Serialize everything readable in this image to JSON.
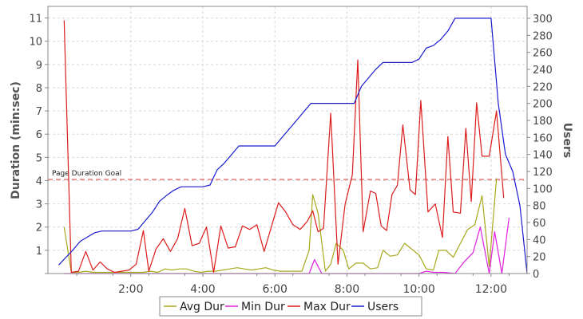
{
  "chart_data": {
    "type": "line",
    "title": "",
    "ylabel_left": "Duration (min:sec)",
    "ylabel_right": "Users",
    "xlabel": "",
    "x_ticks": [
      {
        "label": "2:00",
        "x": 2
      },
      {
        "label": "4:00",
        "x": 4
      },
      {
        "label": "6:00",
        "x": 6
      },
      {
        "label": "8:00",
        "x": 8
      },
      {
        "label": "10:00",
        "x": 10
      },
      {
        "label": "12:00",
        "x": 12
      }
    ],
    "xlim": [
      -0.3,
      13.0
    ],
    "ylim_left": [
      0,
      11.5
    ],
    "y_ticks_left": [
      1,
      2,
      3,
      4,
      5,
      6,
      7,
      8,
      9,
      10,
      11
    ],
    "ylim_right": [
      0,
      314
    ],
    "y_ticks_right": [
      0,
      20,
      40,
      60,
      80,
      100,
      120,
      140,
      160,
      180,
      200,
      220,
      240,
      260,
      280,
      300
    ],
    "goal_line": {
      "label": "Page Duration Goal",
      "y": 4.05,
      "color": "#d13a3a"
    },
    "legend_position": "bottom",
    "grid": true,
    "series": [
      {
        "name": "Avg Dur",
        "color": "#a8a81c",
        "axis": "left",
        "x": [
          0.15,
          0.35,
          0.55,
          0.75,
          0.95,
          1.15,
          1.35,
          1.55,
          1.75,
          1.95,
          2.15,
          2.35,
          2.55,
          2.75,
          2.95,
          3.15,
          3.35,
          3.55,
          3.75,
          3.95,
          4.15,
          4.35,
          4.55,
          4.75,
          4.95,
          5.15,
          5.35,
          5.55,
          5.75,
          5.95,
          6.15,
          6.35,
          6.55,
          6.75,
          6.95,
          7.05,
          7.2,
          7.4,
          7.55,
          7.7,
          7.9,
          8.05,
          8.25,
          8.45,
          8.65,
          8.85,
          9.0,
          9.2,
          9.4,
          9.6,
          9.8,
          10.0,
          10.2,
          10.4,
          10.55,
          10.75,
          10.95,
          11.15,
          11.35,
          11.55,
          11.75,
          11.95,
          12.15
        ],
        "values": [
          2.0,
          0.05,
          0.05,
          0.1,
          0.05,
          0.05,
          0.05,
          0.05,
          0.05,
          0.05,
          0.05,
          0.05,
          0.1,
          0.05,
          0.2,
          0.15,
          0.2,
          0.2,
          0.1,
          0.05,
          0.1,
          0.1,
          0.15,
          0.2,
          0.25,
          0.2,
          0.15,
          0.2,
          0.25,
          0.15,
          0.1,
          0.1,
          0.1,
          0.1,
          1.0,
          3.4,
          2.6,
          0.1,
          0.4,
          1.3,
          1.0,
          0.2,
          0.45,
          0.45,
          0.2,
          0.25,
          1.0,
          0.75,
          0.8,
          1.3,
          1.05,
          0.8,
          0.2,
          0.15,
          1.0,
          1.0,
          0.7,
          1.3,
          1.9,
          2.1,
          3.35,
          0.3,
          4.1
        ]
      },
      {
        "name": "Min Dur",
        "color": "#e020e0",
        "axis": "left",
        "x": [
          0.15,
          0.35,
          1.0,
          2.0,
          3.0,
          4.0,
          5.0,
          6.0,
          6.95,
          7.1,
          7.3,
          7.6,
          8.0,
          9.0,
          10.0,
          10.2,
          10.4,
          10.7,
          11.0,
          11.25,
          11.5,
          11.7,
          11.95,
          12.1,
          12.3,
          12.5
        ],
        "values": [
          0.0,
          0.0,
          0.0,
          0.0,
          0.0,
          0.0,
          0.0,
          0.0,
          0.0,
          0.6,
          0.0,
          0.0,
          0.0,
          0.0,
          0.0,
          0.1,
          0.05,
          0.05,
          0.0,
          0.5,
          0.9,
          2.0,
          0.0,
          1.8,
          0.0,
          2.4
        ]
      },
      {
        "name": "Max Dur",
        "color": "#dd1c1c",
        "axis": "left",
        "x": [
          0.15,
          0.35,
          0.55,
          0.75,
          0.95,
          1.15,
          1.35,
          1.55,
          1.75,
          1.95,
          2.15,
          2.35,
          2.5,
          2.7,
          2.9,
          3.1,
          3.3,
          3.5,
          3.7,
          3.9,
          4.1,
          4.3,
          4.5,
          4.7,
          4.9,
          5.1,
          5.3,
          5.5,
          5.7,
          5.9,
          6.1,
          6.3,
          6.5,
          6.7,
          6.9,
          7.05,
          7.2,
          7.35,
          7.55,
          7.75,
          7.95,
          8.15,
          8.3,
          8.45,
          8.65,
          8.8,
          8.95,
          9.1,
          9.25,
          9.4,
          9.55,
          9.75,
          9.9,
          10.05,
          10.25,
          10.45,
          10.65,
          10.8,
          10.95,
          11.15,
          11.3,
          11.45,
          11.6,
          11.75,
          11.95,
          12.15,
          12.35
        ],
        "values": [
          10.9,
          0.05,
          0.1,
          0.95,
          0.15,
          0.5,
          0.2,
          0.05,
          0.1,
          0.15,
          0.4,
          1.85,
          0.1,
          1.05,
          1.5,
          0.95,
          1.5,
          2.8,
          1.2,
          1.3,
          2.0,
          0.05,
          2.05,
          1.1,
          1.15,
          2.05,
          1.9,
          2.1,
          0.95,
          2.0,
          3.05,
          2.65,
          2.1,
          1.9,
          2.25,
          2.7,
          1.8,
          1.95,
          6.9,
          0.4,
          3.0,
          4.25,
          9.2,
          1.8,
          3.55,
          3.45,
          2.05,
          1.85,
          3.4,
          3.8,
          6.4,
          3.6,
          3.4,
          7.45,
          2.65,
          3.0,
          1.55,
          5.9,
          2.65,
          2.6,
          6.25,
          3.1,
          7.35,
          5.05,
          5.05,
          7.0,
          3.25
        ]
      },
      {
        "name": "Users",
        "color": "#1a1ad0",
        "axis": "right",
        "x": [
          0.0,
          0.4,
          0.6,
          0.8,
          1.0,
          1.2,
          1.4,
          1.6,
          1.8,
          2.0,
          2.2,
          2.4,
          2.6,
          2.8,
          3.0,
          3.2,
          3.4,
          3.6,
          3.8,
          4.0,
          4.2,
          4.4,
          4.6,
          4.8,
          5.0,
          5.2,
          5.4,
          5.6,
          5.8,
          6.0,
          6.2,
          6.4,
          6.6,
          6.8,
          7.0,
          7.2,
          7.4,
          7.6,
          7.8,
          8.0,
          8.2,
          8.4,
          8.6,
          8.8,
          9.0,
          9.2,
          9.4,
          9.6,
          9.8,
          10.0,
          10.2,
          10.4,
          10.6,
          10.8,
          11.0,
          11.2,
          11.4,
          11.6,
          11.8,
          12.0,
          12.2,
          12.4,
          12.6,
          12.8,
          13.0
        ],
        "values": [
          10,
          28,
          38,
          43,
          48,
          50,
          50,
          50,
          50,
          50,
          52,
          62,
          72,
          85,
          92,
          98,
          102,
          102,
          102,
          102,
          104,
          122,
          130,
          140,
          150,
          150,
          150,
          150,
          150,
          150,
          160,
          170,
          180,
          190,
          200,
          200,
          200,
          200,
          200,
          200,
          200,
          220,
          230,
          240,
          248,
          248,
          248,
          248,
          248,
          252,
          265,
          268,
          275,
          285,
          300,
          300,
          300,
          300,
          300,
          300,
          200,
          140,
          120,
          80,
          0
        ]
      }
    ]
  }
}
